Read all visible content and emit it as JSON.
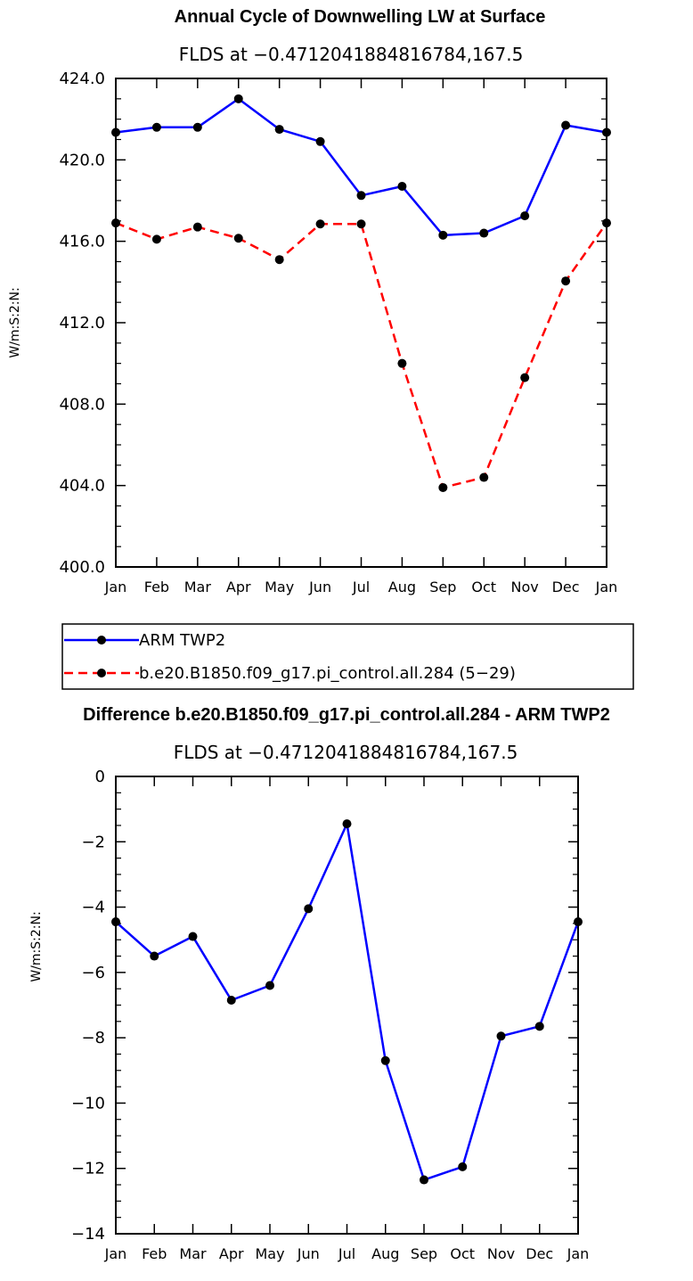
{
  "chart_data": [
    {
      "type": "line",
      "title": "Annual Cycle of Downwelling LW at Surface",
      "subtitle": "FLDS at −0.4712041884816784,167.5",
      "ylabel": "W/m:S:2:N:",
      "categories": [
        "Jan",
        "Feb",
        "Mar",
        "Apr",
        "May",
        "Jun",
        "Jul",
        "Aug",
        "Sep",
        "Oct",
        "Nov",
        "Dec",
        "Jan"
      ],
      "ylim": [
        400,
        424
      ],
      "yticks": [
        400,
        404,
        408,
        412,
        416,
        420,
        424
      ],
      "ytick_labels": [
        "400.0",
        "404.0",
        "408.0",
        "412.0",
        "416.0",
        "420.0",
        "424.0"
      ],
      "grid": false,
      "legend_placement": "below",
      "series": [
        {
          "name": "ARM TWP2",
          "color": "#0000ff",
          "dash": "solid",
          "values": [
            421.35,
            421.6,
            421.6,
            423.0,
            421.5,
            420.9,
            418.25,
            418.7,
            416.3,
            416.4,
            417.25,
            421.7,
            421.35
          ]
        },
        {
          "name": "b.e20.B1850.f09_g17.pi_control.all.284 (5−29)",
          "color": "#ff0000",
          "dash": "dashed",
          "values": [
            416.9,
            416.1,
            416.7,
            416.15,
            415.1,
            416.85,
            416.85,
            410.0,
            403.9,
            404.4,
            409.3,
            414.05,
            416.9
          ]
        }
      ]
    },
    {
      "type": "line",
      "title": "Difference b.e20.B1850.f09_g17.pi_control.all.284 - ARM TWP2",
      "subtitle": "FLDS at −0.4712041884816784,167.5",
      "ylabel": "W/m:S:2:N:",
      "categories": [
        "Jan",
        "Feb",
        "Mar",
        "Apr",
        "May",
        "Jun",
        "Jul",
        "Aug",
        "Sep",
        "Oct",
        "Nov",
        "Dec",
        "Jan"
      ],
      "ylim": [
        -14,
        0
      ],
      "yticks": [
        -14,
        -12,
        -10,
        -8,
        -6,
        -4,
        -2,
        0
      ],
      "ytick_labels": [
        "−14",
        "−12",
        "−10",
        "−8",
        "−6",
        "−4",
        "−2",
        "0"
      ],
      "grid": false,
      "series": [
        {
          "color": "#0000ff",
          "dash": "solid",
          "values": [
            -4.45,
            -5.5,
            -4.9,
            -6.85,
            -6.4,
            -4.05,
            -1.45,
            -8.7,
            -12.35,
            -11.95,
            -7.95,
            -7.65,
            -4.45
          ]
        }
      ]
    }
  ]
}
